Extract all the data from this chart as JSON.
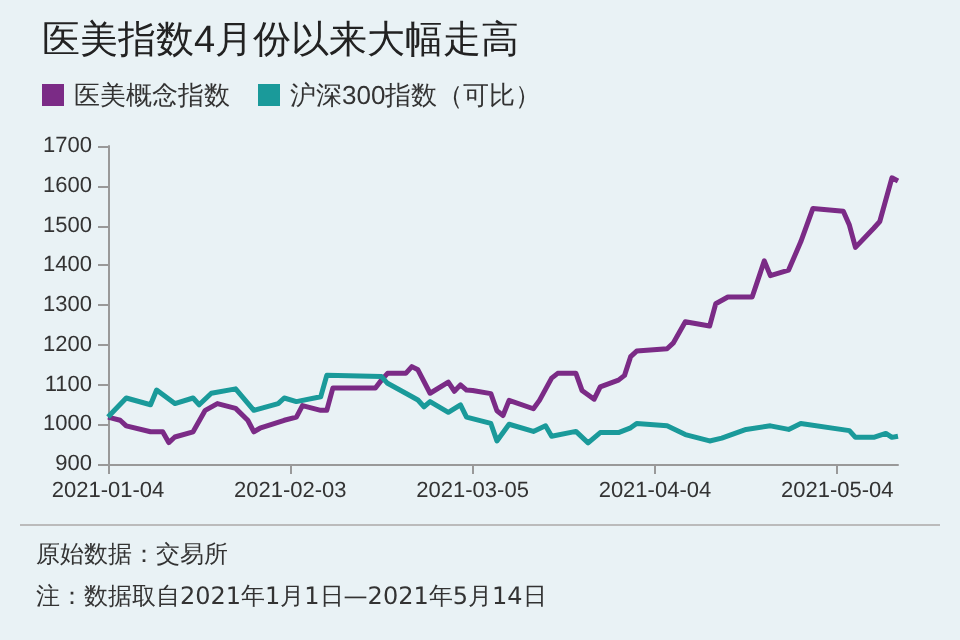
{
  "chart_data": {
    "type": "line",
    "title": "医美指数4月份以来大幅走高",
    "series": [
      {
        "name": "医美概念指数",
        "color": "#7b2b86",
        "x": [
          "2021-01-04",
          "2021-01-06",
          "2021-01-07",
          "2021-01-11",
          "2021-01-13",
          "2021-01-14",
          "2021-01-15",
          "2021-01-18",
          "2021-01-20",
          "2021-01-22",
          "2021-01-25",
          "2021-01-27",
          "2021-01-28",
          "2021-01-29",
          "2021-02-02",
          "2021-02-04",
          "2021-02-05",
          "2021-02-08",
          "2021-02-09",
          "2021-02-10",
          "2021-02-17",
          "2021-02-18",
          "2021-02-19",
          "2021-02-22",
          "2021-02-23",
          "2021-02-24",
          "2021-02-26",
          "2021-03-01",
          "2021-03-02",
          "2021-03-03",
          "2021-03-04",
          "2021-03-05",
          "2021-03-08",
          "2021-03-09",
          "2021-03-10",
          "2021-03-11",
          "2021-03-15",
          "2021-03-16",
          "2021-03-18",
          "2021-03-19",
          "2021-03-22",
          "2021-03-23",
          "2021-03-25",
          "2021-03-26",
          "2021-03-29",
          "2021-03-30",
          "2021-03-31",
          "2021-04-01",
          "2021-04-06",
          "2021-04-07",
          "2021-04-09",
          "2021-04-13",
          "2021-04-14",
          "2021-04-16",
          "2021-04-20",
          "2021-04-22",
          "2021-04-23",
          "2021-04-26",
          "2021-04-28",
          "2021-04-30",
          "2021-05-05",
          "2021-05-06",
          "2021-05-07",
          "2021-05-10",
          "2021-05-11",
          "2021-05-13",
          "2021-05-14"
        ],
        "values": [
          1018,
          1010,
          996,
          981,
          981,
          954,
          968,
          981,
          1035,
          1052,
          1040,
          1010,
          981,
          990,
          1010,
          1018,
          1047,
          1035,
          1035,
          1091,
          1091,
          1111,
          1128,
          1128,
          1145,
          1137,
          1078,
          1106,
          1083,
          1099,
          1086,
          1085,
          1077,
          1034,
          1022,
          1060,
          1039,
          1060,
          1116,
          1128,
          1128,
          1085,
          1063,
          1094,
          1111,
          1123,
          1170,
          1184,
          1190,
          1204,
          1258,
          1247,
          1303,
          1320,
          1320,
          1411,
          1374,
          1388,
          1459,
          1543,
          1536,
          1501,
          1445,
          1493,
          1510,
          1620,
          1612
        ]
      },
      {
        "name": "沪深300指数（可比）",
        "color": "#1a9a9a",
        "x": [
          "2021-01-04",
          "2021-01-07",
          "2021-01-11",
          "2021-01-12",
          "2021-01-15",
          "2021-01-18",
          "2021-01-19",
          "2021-01-21",
          "2021-01-25",
          "2021-01-28",
          "2021-02-01",
          "2021-02-02",
          "2021-02-04",
          "2021-02-08",
          "2021-02-09",
          "2021-02-18",
          "2021-02-19",
          "2021-02-22",
          "2021-02-24",
          "2021-02-25",
          "2021-02-26",
          "2021-03-01",
          "2021-03-03",
          "2021-03-04",
          "2021-03-08",
          "2021-03-09",
          "2021-03-11",
          "2021-03-15",
          "2021-03-17",
          "2021-03-18",
          "2021-03-22",
          "2021-03-24",
          "2021-03-26",
          "2021-03-29",
          "2021-03-31",
          "2021-04-01",
          "2021-04-06",
          "2021-04-09",
          "2021-04-13",
          "2021-04-15",
          "2021-04-19",
          "2021-04-23",
          "2021-04-26",
          "2021-04-28",
          "2021-05-06",
          "2021-05-07",
          "2021-05-10",
          "2021-05-12",
          "2021-05-13",
          "2021-05-14"
        ],
        "values": [
          1018,
          1066,
          1049,
          1086,
          1052,
          1066,
          1049,
          1078,
          1089,
          1035,
          1052,
          1066,
          1057,
          1069,
          1123,
          1120,
          1103,
          1078,
          1061,
          1044,
          1057,
          1030,
          1049,
          1018,
          1002,
          958,
          1000,
          982,
          996,
          970,
          982,
          953,
          979,
          979,
          991,
          1002,
          996,
          974,
          958,
          965,
          987,
          996,
          987,
          1002,
          984,
          967,
          967,
          977,
          967,
          970
        ]
      }
    ],
    "xlim": [
      "2021-01-04",
      "2021-05-14"
    ],
    "xticks": [
      "2021-01-04",
      "2021-02-03",
      "2021-03-05",
      "2021-04-04",
      "2021-05-04"
    ],
    "ylim": [
      900,
      1700
    ],
    "yticks": [
      900,
      1000,
      1100,
      1200,
      1300,
      1400,
      1500,
      1600,
      1700
    ],
    "grid": false,
    "legend": "top left",
    "marker": "none",
    "line_style": "solid",
    "annotations": [
      "原始数据：交易所",
      "注：数据取自2021年1月1日—2021年5月14日"
    ]
  }
}
